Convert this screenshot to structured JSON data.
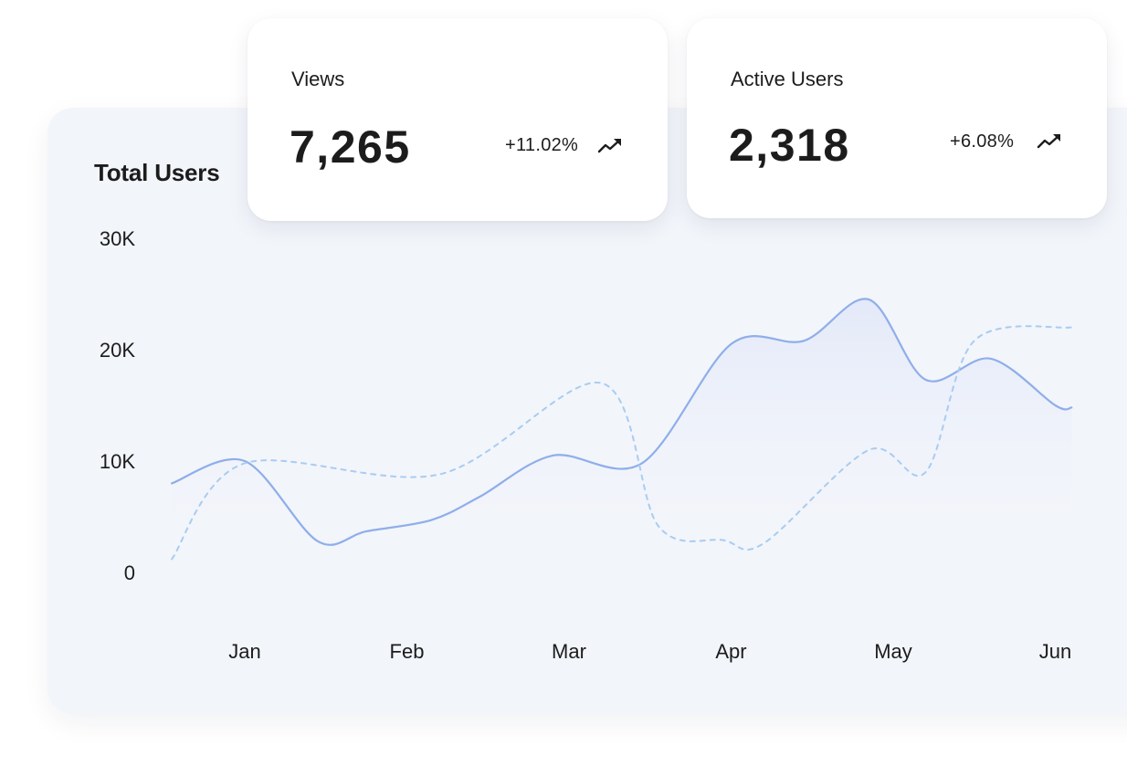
{
  "chart_data": {
    "type": "line",
    "title": "Total Users",
    "categories": [
      "Jan",
      "Feb",
      "Mar",
      "Apr",
      "May",
      "Jun"
    ],
    "y_ticks": [
      "0",
      "10K",
      "20K",
      "30K"
    ],
    "ylim": [
      0,
      30000
    ],
    "grid": false,
    "series": [
      {
        "style": "solid",
        "color": "#8faeea",
        "points": [
          [
            0.55,
            8000
          ],
          [
            1.0,
            10000
          ],
          [
            1.45,
            2800
          ],
          [
            1.75,
            3700
          ],
          [
            2.15,
            4700
          ],
          [
            2.45,
            6800
          ],
          [
            2.9,
            10500
          ],
          [
            3.45,
            9800
          ],
          [
            4.0,
            20500
          ],
          [
            4.45,
            20800
          ],
          [
            4.85,
            24500
          ],
          [
            5.2,
            17300
          ],
          [
            5.6,
            19200
          ],
          [
            6.0,
            15000
          ],
          [
            6.1,
            14800
          ]
        ]
      },
      {
        "style": "dashed",
        "color": "#a9ccf1",
        "points": [
          [
            0.55,
            1200
          ],
          [
            1.0,
            9800
          ],
          [
            2.2,
            8800
          ],
          [
            3.2,
            17000
          ],
          [
            3.55,
            4200
          ],
          [
            3.95,
            2900
          ],
          [
            4.2,
            2600
          ],
          [
            4.85,
            11000
          ],
          [
            5.2,
            9000
          ],
          [
            5.5,
            20800
          ],
          [
            6.1,
            22000
          ]
        ]
      }
    ]
  },
  "cards": [
    {
      "label": "Views",
      "value": "7,265",
      "change": "+11.02%",
      "icon": "trend-up-icon"
    },
    {
      "label": "Active Users",
      "value": "2,318",
      "change": "+6.08%",
      "icon": "trend-up-icon"
    }
  ]
}
